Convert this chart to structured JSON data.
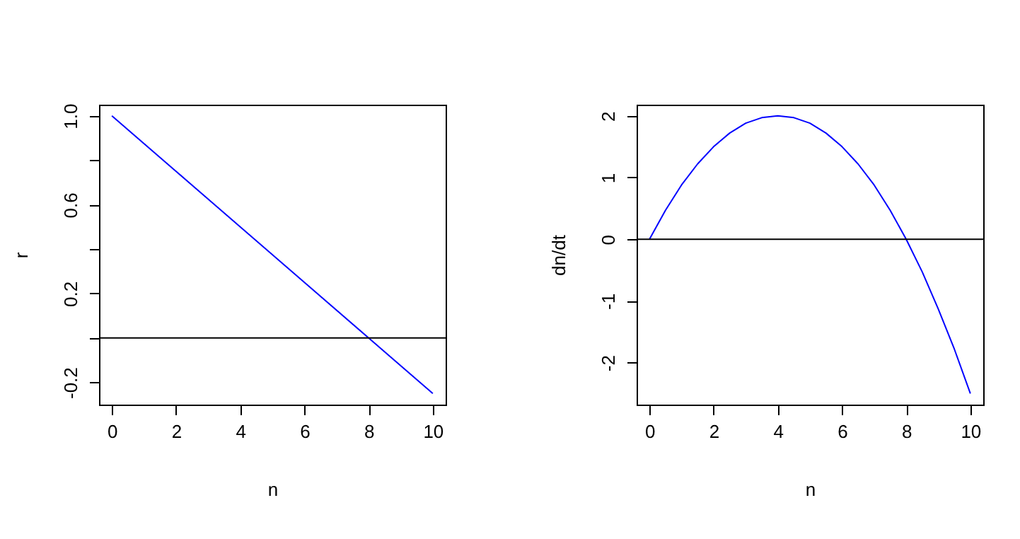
{
  "chart_data": [
    {
      "type": "line",
      "xlabel": "n",
      "ylabel": "r",
      "x": [
        0,
        2,
        4,
        6,
        8,
        10
      ],
      "series": [
        {
          "color": "#0000ff",
          "values": [
            1,
            0.75,
            0.5,
            0.25,
            0,
            -0.25
          ]
        }
      ],
      "xlim": [
        -0.4,
        10.4
      ],
      "xticks": [
        0,
        2,
        4,
        6,
        8,
        10
      ],
      "ylim": [
        -0.3,
        1.05
      ],
      "yticks": [
        -0.2,
        {
          "value": 0,
          "label": null
        },
        0.2,
        {
          "value": 0.4,
          "label": null
        },
        0.6,
        {
          "value": 0.8,
          "label": null
        },
        {
          "value": 1,
          "label": "1.0"
        }
      ],
      "ref_lines": [
        {
          "axis": "y",
          "value": 0,
          "color": "#000000"
        }
      ],
      "grid": false,
      "marker": "none",
      "line_style": "solid"
    },
    {
      "type": "line",
      "xlabel": "n",
      "ylabel": "dn/dt",
      "x": [
        0,
        0.5,
        1,
        1.5,
        2,
        2.5,
        3,
        3.5,
        4,
        4.5,
        5,
        5.5,
        6,
        6.5,
        7,
        7.5,
        8,
        8.5,
        9,
        9.5,
        10
      ],
      "series": [
        {
          "color": "#0000ff",
          "values": [
            0,
            0.47,
            0.88,
            1.22,
            1.5,
            1.72,
            1.88,
            1.97,
            2,
            1.97,
            1.88,
            1.72,
            1.5,
            1.22,
            0.88,
            0.47,
            0,
            -0.53,
            -1.13,
            -1.78,
            -2.5
          ]
        }
      ],
      "xlim": [
        -0.4,
        10.4
      ],
      "xticks": [
        0,
        2,
        4,
        6,
        8,
        10
      ],
      "ylim": [
        -2.68,
        2.18
      ],
      "yticks": [
        -2,
        -1,
        0,
        1,
        2
      ],
      "ref_lines": [
        {
          "axis": "y",
          "value": 0,
          "color": "#000000"
        }
      ],
      "grid": false,
      "marker": "none",
      "line_style": "solid"
    }
  ]
}
